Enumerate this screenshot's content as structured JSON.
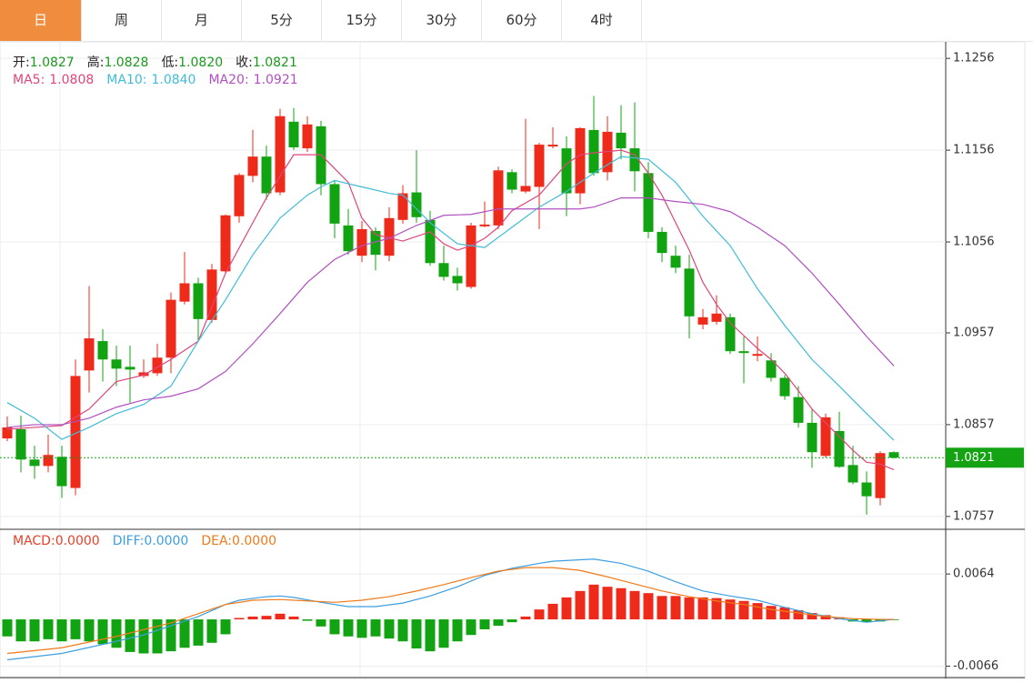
{
  "tabs": [
    "日",
    "周",
    "月",
    "5分",
    "15分",
    "30分",
    "60分",
    "4时"
  ],
  "chart_data": [
    {
      "type": "candlestick",
      "info": [
        {
          "label": "开:",
          "value": "1.0827"
        },
        {
          "label": "高:",
          "value": "1.0828"
        },
        {
          "label": "低:",
          "value": "1.0820"
        },
        {
          "label": "收:",
          "value": "1.0821"
        }
      ],
      "info_value_color": "#1a9a1a",
      "up_color": "#ee2b1b",
      "down_color": "#12a312",
      "open": [
        1.0842,
        1.0852,
        1.0819,
        1.0812,
        1.0822,
        1.0788,
        1.0916,
        1.0948,
        1.0928,
        1.092,
        1.091,
        1.0913,
        1.093,
        1.0991,
        1.1011,
        1.0971,
        1.1024,
        1.1084,
        1.1128,
        1.1149,
        1.111,
        1.1187,
        1.1158,
        1.1182,
        1.1119,
        1.1074,
        1.1041,
        1.1068,
        1.1041,
        1.108,
        1.111,
        1.108,
        1.1033,
        1.1019,
        1.1007,
        1.1073,
        1.1074,
        1.1132,
        1.1111,
        1.1116,
        1.116,
        1.1158,
        1.1109,
        1.1178,
        1.1132,
        1.1175,
        1.1158,
        1.1131,
        1.1067,
        1.1041,
        1.1027,
        1.0966,
        1.0969,
        1.0974,
        1.0937,
        1.0932,
        1.0927,
        1.0908,
        1.0887,
        1.0859,
        1.0823,
        1.085,
        1.0813,
        1.0794,
        1.0777,
        1.0827
      ],
      "high": [
        1.0866,
        1.0867,
        1.0834,
        1.0846,
        1.0834,
        1.0928,
        1.1008,
        1.0961,
        1.0943,
        1.0943,
        1.0928,
        1.0945,
        1.1001,
        1.1045,
        1.1017,
        1.1032,
        1.1086,
        1.1131,
        1.1178,
        1.1161,
        1.1201,
        1.1202,
        1.1193,
        1.1188,
        1.1123,
        1.1092,
        1.1079,
        1.1072,
        1.1094,
        1.1118,
        1.1156,
        1.109,
        1.1052,
        1.1028,
        1.1077,
        1.11,
        1.1138,
        1.1135,
        1.119,
        1.1164,
        1.1181,
        1.1171,
        1.1181,
        1.1215,
        1.1193,
        1.1205,
        1.1208,
        1.1143,
        1.1072,
        1.1052,
        1.1042,
        1.0983,
        1.0998,
        1.0978,
        1.0953,
        1.0953,
        1.0935,
        1.0911,
        1.0899,
        1.0874,
        1.0869,
        1.0871,
        1.0834,
        1.0806,
        1.0828,
        1.0828
      ],
      "low": [
        1.0839,
        1.0805,
        1.0798,
        1.0805,
        1.0777,
        1.078,
        1.0892,
        1.0904,
        1.0899,
        1.0881,
        1.0908,
        1.091,
        1.0913,
        1.0988,
        1.0948,
        1.0968,
        1.1022,
        1.1077,
        1.1121,
        1.1102,
        1.1107,
        1.1156,
        1.1154,
        1.1107,
        1.106,
        1.1042,
        1.1034,
        1.1025,
        1.1035,
        1.1076,
        1.1077,
        1.103,
        1.1014,
        1.1003,
        1.1005,
        1.1072,
        1.107,
        1.1109,
        1.1109,
        1.107,
        1.1158,
        1.1084,
        1.1097,
        1.1128,
        1.1123,
        1.1146,
        1.1111,
        1.106,
        1.1034,
        1.1022,
        1.0951,
        1.0961,
        1.0966,
        1.0934,
        1.0902,
        1.0926,
        1.0904,
        1.0884,
        1.0854,
        1.081,
        1.0821,
        1.081,
        1.0792,
        1.0759,
        1.0769,
        1.082
      ],
      "close": [
        1.0854,
        1.0819,
        1.0812,
        1.0824,
        1.079,
        1.091,
        1.0951,
        1.0928,
        1.0918,
        1.0917,
        1.0914,
        1.093,
        1.0993,
        1.1011,
        1.0972,
        1.1026,
        1.1085,
        1.1129,
        1.1149,
        1.1109,
        1.1193,
        1.1159,
        1.1184,
        1.1119,
        1.1076,
        1.1046,
        1.107,
        1.1042,
        1.1082,
        1.1109,
        1.1083,
        1.1033,
        1.1018,
        1.1011,
        1.1074,
        1.1075,
        1.1134,
        1.1113,
        1.1117,
        1.1162,
        1.1162,
        1.1109,
        1.118,
        1.1131,
        1.1176,
        1.1158,
        1.1133,
        1.1067,
        1.1044,
        1.1028,
        1.0975,
        1.0974,
        1.0978,
        1.0937,
        1.0935,
        1.0934,
        1.0908,
        1.0888,
        1.0859,
        1.0827,
        1.0865,
        1.0811,
        1.0794,
        1.0779,
        1.0826,
        1.0821
      ],
      "series": [
        {
          "label": "MA5:",
          "value_label": "1.0808",
          "color": "#e0457b",
          "x": [
            0,
            2,
            4,
            6,
            8,
            10,
            12,
            14,
            16,
            18,
            19,
            21,
            23,
            24,
            25,
            26,
            27,
            29,
            31,
            32,
            33,
            34,
            35,
            36,
            37,
            39,
            41,
            42,
            43,
            45,
            46,
            47,
            48,
            49,
            50,
            51,
            52,
            53,
            55,
            56,
            57,
            58,
            59,
            60,
            61,
            62,
            63,
            64,
            65
          ],
          "values": [
            1.0852,
            1.0854,
            1.0856,
            1.0874,
            1.0904,
            1.0911,
            1.0928,
            1.0948,
            1.1022,
            1.1077,
            1.1104,
            1.1151,
            1.1151,
            1.1136,
            1.1121,
            1.1082,
            1.1064,
            1.1057,
            1.1067,
            1.1054,
            1.1047,
            1.1052,
            1.106,
            1.1072,
            1.109,
            1.1107,
            1.1141,
            1.1151,
            1.1153,
            1.1156,
            1.1151,
            1.1131,
            1.1107,
            1.1077,
            1.1047,
            1.1012,
            1.0988,
            1.0968,
            1.094,
            1.0928,
            1.0913,
            1.0894,
            1.0874,
            1.0859,
            1.0844,
            1.0829,
            1.0816,
            1.0814,
            1.0808
          ]
        },
        {
          "label": "MA10:",
          "value_label": "1.0840",
          "color": "#3fbcd6",
          "x": [
            0,
            2,
            4,
            6,
            8,
            10,
            12,
            14,
            16,
            18,
            20,
            22,
            23,
            24,
            26,
            28,
            29,
            31,
            33,
            35,
            37,
            39,
            41,
            43,
            45,
            47,
            49,
            51,
            53,
            55,
            57,
            59,
            61,
            63,
            65
          ],
          "values": [
            1.0881,
            1.0864,
            1.0841,
            1.0854,
            1.0869,
            1.0879,
            1.0899,
            1.0948,
            1.0993,
            1.1042,
            1.1082,
            1.1107,
            1.1116,
            1.1123,
            1.1116,
            1.1109,
            1.1107,
            1.1077,
            1.1054,
            1.105,
            1.1072,
            1.1094,
            1.1111,
            1.1131,
            1.1149,
            1.1146,
            1.1121,
            1.1084,
            1.1052,
            1.1005,
            1.0965,
            1.0928,
            1.0899,
            1.0869,
            1.084
          ]
        },
        {
          "label": "MA20:",
          "value_label": "1.0921",
          "color": "#b050c0",
          "x": [
            0,
            2,
            4,
            6,
            8,
            10,
            12,
            14,
            16,
            18,
            20,
            22,
            24,
            26,
            28,
            30,
            32,
            34,
            36,
            38,
            40,
            42,
            43,
            45,
            47,
            49,
            51,
            53,
            55,
            57,
            59,
            61,
            63,
            65
          ],
          "values": [
            1.0854,
            1.0857,
            1.0857,
            1.0864,
            1.0876,
            1.0884,
            1.0888,
            1.0896,
            1.0915,
            1.0945,
            1.0978,
            1.1012,
            1.1037,
            1.1052,
            1.106,
            1.1074,
            1.1085,
            1.1086,
            1.1092,
            1.1092,
            1.1092,
            1.1092,
            1.1094,
            1.1104,
            1.1104,
            1.11,
            1.1097,
            1.1089,
            1.1072,
            1.1052,
            1.1022,
            1.0988,
            1.0953,
            1.0921
          ]
        }
      ],
      "current_price": {
        "value": 1.0821,
        "label": "1.0821"
      },
      "current_price_color": "#13a313",
      "ylim": [
        1.0743,
        1.1274
      ],
      "yticks": [
        1.1256,
        1.1156,
        1.1056,
        1.0957,
        1.0857,
        1.0757
      ],
      "grid": true
    },
    {
      "type": "macd",
      "legend": [
        {
          "label": "MACD:",
          "value": "0.0000",
          "color": "#e8402a"
        },
        {
          "label": "DIFF:",
          "value": "0.0000",
          "color": "#3d9fe0"
        },
        {
          "label": "DEA:",
          "value": "0.0000",
          "color": "#f07a1a"
        }
      ],
      "up_color": "#ee2b1b",
      "down_color": "#12a312",
      "values": [
        -0.0024,
        -0.0031,
        -0.0031,
        -0.0028,
        -0.0031,
        -0.0028,
        -0.0031,
        -0.0035,
        -0.004,
        -0.0046,
        -0.0048,
        -0.0048,
        -0.0045,
        -0.004,
        -0.0037,
        -0.0033,
        -0.0021,
        0.0002,
        0.0004,
        0.0005,
        0.0008,
        0.0004,
        -0.0002,
        -0.001,
        -0.0021,
        -0.0024,
        -0.0026,
        -0.0024,
        -0.0027,
        -0.0031,
        -0.0041,
        -0.0045,
        -0.004,
        -0.0031,
        -0.0022,
        -0.0014,
        -0.0009,
        -0.0004,
        0.0004,
        0.0014,
        0.0022,
        0.0031,
        0.004,
        0.0049,
        0.0046,
        0.0044,
        0.004,
        0.0037,
        0.0033,
        0.0033,
        0.0031,
        0.0031,
        0.003,
        0.0028,
        0.0026,
        0.0023,
        0.0019,
        0.0017,
        0.0013,
        0.0009,
        0.0006,
        0.0003,
        -0.0003,
        -0.0004,
        -0.0003,
        -0.0001
      ],
      "series": [
        {
          "color": "#3d9fe0",
          "x": [
            0,
            4,
            8,
            10,
            12,
            14,
            16,
            17,
            19,
            20,
            21,
            23,
            25,
            27,
            29,
            31,
            33,
            35,
            37,
            39,
            40,
            42,
            43,
            45,
            47,
            49,
            51,
            53,
            55,
            57,
            59,
            61,
            63,
            65
          ],
          "values": [
            -0.0057,
            -0.0048,
            -0.0031,
            -0.0022,
            -0.0009,
            0.0004,
            0.0021,
            0.0027,
            0.0032,
            0.0033,
            0.0031,
            0.0024,
            0.0018,
            0.0018,
            0.0023,
            0.0033,
            0.0046,
            0.0062,
            0.0072,
            0.0079,
            0.0082,
            0.0084,
            0.0085,
            0.0079,
            0.0068,
            0.0053,
            0.004,
            0.0033,
            0.0027,
            0.0017,
            0.0008,
            0.0001,
            -0.0004,
            0.0
          ]
        },
        {
          "color": "#f07a1a",
          "x": [
            0,
            4,
            8,
            12,
            14,
            16,
            18,
            20,
            22,
            24,
            26,
            28,
            30,
            32,
            34,
            36,
            38,
            40,
            42,
            44,
            46,
            48,
            50,
            52,
            54,
            56,
            58,
            60,
            62,
            64,
            65
          ],
          "values": [
            -0.0048,
            -0.004,
            -0.0024,
            -0.0005,
            0.0008,
            0.0021,
            0.0027,
            0.0028,
            0.0026,
            0.0024,
            0.0027,
            0.0032,
            0.004,
            0.0049,
            0.0059,
            0.0068,
            0.0073,
            0.0073,
            0.0069,
            0.006,
            0.005,
            0.004,
            0.0032,
            0.0026,
            0.0021,
            0.0014,
            0.0009,
            0.0004,
            0.0001,
            0,
            0
          ]
        }
      ],
      "ylim": [
        -0.0082,
        0.0127
      ],
      "yticks": [
        0.0064,
        -0.0066
      ],
      "grid": true
    }
  ]
}
